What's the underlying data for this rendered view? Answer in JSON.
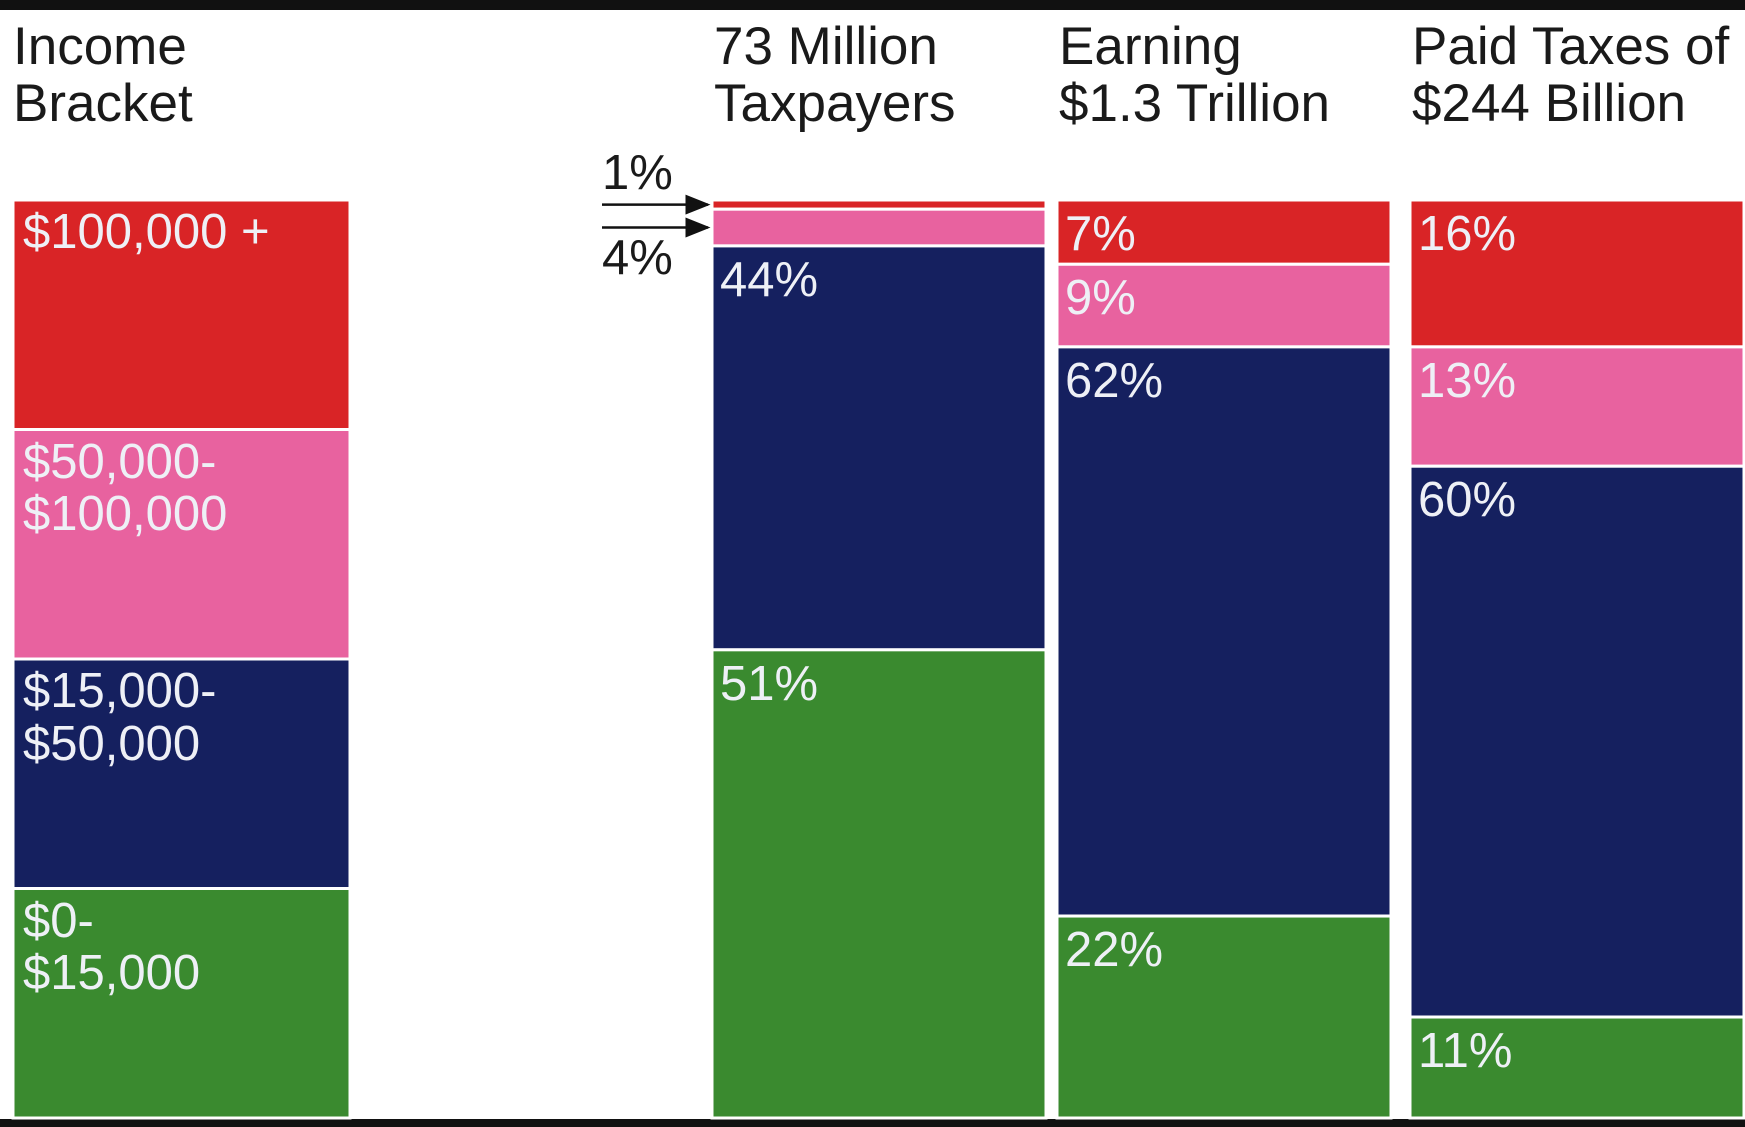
{
  "chart_data": {
    "type": "bar",
    "stacked": true,
    "legend_title": "Income\nBracket",
    "categories": [
      "73 Million\nTaxpayers",
      "Earning\n$1.3 Trillion",
      "Paid Taxes of\n$244 Billion"
    ],
    "series": [
      {
        "name": "$100,000 +",
        "color": "#d92426",
        "values": [
          1,
          7,
          16
        ],
        "value_labels": [
          "1%",
          "7%",
          "16%"
        ]
      },
      {
        "name": "$50,000-\n$100,000",
        "color": "#e8629f",
        "values": [
          4,
          9,
          13
        ],
        "value_labels": [
          "4%",
          "9%",
          "13%"
        ]
      },
      {
        "name": "$15,000-\n$50,000",
        "color": "#15205f",
        "values": [
          44,
          62,
          60
        ],
        "value_labels": [
          "44%",
          "62%",
          "60%"
        ]
      },
      {
        "name": "$0-\n$15,000",
        "color": "#3a8a2f",
        "values": [
          51,
          22,
          11
        ],
        "value_labels": [
          "51%",
          "22%",
          "11%"
        ]
      }
    ],
    "ylim": [
      0,
      100
    ]
  }
}
